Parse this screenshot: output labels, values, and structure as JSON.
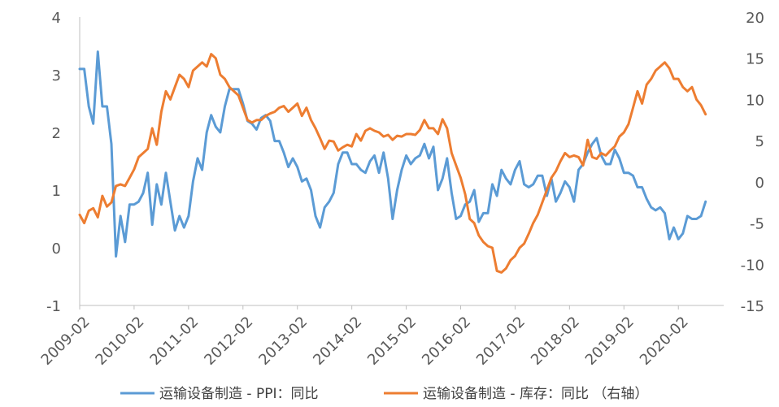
{
  "chart_data": {
    "type": "line",
    "title": "",
    "xlabel": "",
    "ylabel": "",
    "x_start": "2009-02",
    "x_end": "2020-12",
    "x_tick_labels": [
      "2009-02",
      "2010-02",
      "2011-02",
      "2012-02",
      "2013-02",
      "2014-02",
      "2015-02",
      "2016-02",
      "2017-02",
      "2018-02",
      "2019-02",
      "2020-02"
    ],
    "ylim_left": [
      -1,
      4
    ],
    "ylim_right": [
      -15,
      20
    ],
    "left_tick_labels": [
      "4",
      "3",
      "2",
      "1",
      "0",
      "-1"
    ],
    "right_tick_labels": [
      "20",
      "15",
      "10",
      "5",
      "0",
      "-5",
      "-10",
      "-15"
    ],
    "grid": false,
    "legend_position": "bottom",
    "series": [
      {
        "name": "运输设备制造 - PPI：同比",
        "axis": "left",
        "color": "#5B9BD5",
        "points": [
          [
            "2009-02",
            3.1
          ],
          [
            "2009-03",
            3.1
          ],
          [
            "2009-04",
            2.45
          ],
          [
            "2009-05",
            2.15
          ],
          [
            "2009-06",
            3.4
          ],
          [
            "2009-07",
            2.45
          ],
          [
            "2009-08",
            2.45
          ],
          [
            "2009-09",
            1.8
          ],
          [
            "2009-10",
            -0.15
          ],
          [
            "2009-11",
            0.55
          ],
          [
            "2009-12",
            0.1
          ],
          [
            "2010-01",
            0.75
          ],
          [
            "2010-02",
            0.75
          ],
          [
            "2010-03",
            0.8
          ],
          [
            "2010-04",
            0.95
          ],
          [
            "2010-05",
            1.3
          ],
          [
            "2010-06",
            0.4
          ],
          [
            "2010-07",
            1.1
          ],
          [
            "2010-08",
            0.75
          ],
          [
            "2010-09",
            1.3
          ],
          [
            "2010-10",
            0.8
          ],
          [
            "2010-11",
            0.3
          ],
          [
            "2010-12",
            0.55
          ],
          [
            "2011-01",
            0.35
          ],
          [
            "2011-02",
            0.55
          ],
          [
            "2011-03",
            1.15
          ],
          [
            "2011-04",
            1.55
          ],
          [
            "2011-05",
            1.35
          ],
          [
            "2011-06",
            2.0
          ],
          [
            "2011-07",
            2.3
          ],
          [
            "2011-08",
            2.1
          ],
          [
            "2011-09",
            2.0
          ],
          [
            "2011-10",
            2.45
          ],
          [
            "2011-11",
            2.75
          ],
          [
            "2011-12",
            2.75
          ],
          [
            "2012-01",
            2.75
          ],
          [
            "2012-02",
            2.5
          ],
          [
            "2012-03",
            2.2
          ],
          [
            "2012-04",
            2.15
          ],
          [
            "2012-05",
            2.05
          ],
          [
            "2012-06",
            2.25
          ],
          [
            "2012-07",
            2.3
          ],
          [
            "2012-08",
            2.2
          ],
          [
            "2012-09",
            1.85
          ],
          [
            "2012-10",
            1.85
          ],
          [
            "2012-11",
            1.65
          ],
          [
            "2012-12",
            1.4
          ],
          [
            "2013-01",
            1.55
          ],
          [
            "2013-02",
            1.4
          ],
          [
            "2013-03",
            1.15
          ],
          [
            "2013-04",
            1.2
          ],
          [
            "2013-05",
            1.0
          ],
          [
            "2013-06",
            0.55
          ],
          [
            "2013-07",
            0.35
          ],
          [
            "2013-08",
            0.7
          ],
          [
            "2013-09",
            0.8
          ],
          [
            "2013-10",
            0.95
          ],
          [
            "2013-11",
            1.45
          ],
          [
            "2013-12",
            1.65
          ],
          [
            "2014-01",
            1.65
          ],
          [
            "2014-02",
            1.45
          ],
          [
            "2014-03",
            1.45
          ],
          [
            "2014-04",
            1.35
          ],
          [
            "2014-05",
            1.3
          ],
          [
            "2014-06",
            1.5
          ],
          [
            "2014-07",
            1.6
          ],
          [
            "2014-08",
            1.3
          ],
          [
            "2014-09",
            1.65
          ],
          [
            "2014-10",
            1.2
          ],
          [
            "2014-11",
            0.5
          ],
          [
            "2014-12",
            1.0
          ],
          [
            "2015-01",
            1.35
          ],
          [
            "2015-02",
            1.6
          ],
          [
            "2015-03",
            1.45
          ],
          [
            "2015-04",
            1.55
          ],
          [
            "2015-05",
            1.6
          ],
          [
            "2015-06",
            1.8
          ],
          [
            "2015-07",
            1.55
          ],
          [
            "2015-08",
            1.75
          ],
          [
            "2015-09",
            1.0
          ],
          [
            "2015-10",
            1.2
          ],
          [
            "2015-11",
            1.55
          ],
          [
            "2015-12",
            0.95
          ],
          [
            "2016-01",
            0.5
          ],
          [
            "2016-02",
            0.55
          ],
          [
            "2016-03",
            0.75
          ],
          [
            "2016-04",
            0.8
          ],
          [
            "2016-05",
            1.0
          ],
          [
            "2016-06",
            0.45
          ],
          [
            "2016-07",
            0.6
          ],
          [
            "2016-08",
            0.6
          ],
          [
            "2016-09",
            1.1
          ],
          [
            "2016-10",
            0.9
          ],
          [
            "2016-11",
            1.35
          ],
          [
            "2016-12",
            1.2
          ],
          [
            "2017-01",
            1.1
          ],
          [
            "2017-02",
            1.35
          ],
          [
            "2017-03",
            1.5
          ],
          [
            "2017-04",
            1.1
          ],
          [
            "2017-05",
            1.05
          ],
          [
            "2017-06",
            1.1
          ],
          [
            "2017-07",
            1.25
          ],
          [
            "2017-08",
            1.25
          ],
          [
            "2017-09",
            0.9
          ],
          [
            "2017-10",
            1.2
          ],
          [
            "2017-11",
            0.8
          ],
          [
            "2017-12",
            0.95
          ],
          [
            "2018-01",
            1.15
          ],
          [
            "2018-02",
            1.05
          ],
          [
            "2018-03",
            0.8
          ],
          [
            "2018-04",
            1.35
          ],
          [
            "2018-05",
            1.45
          ],
          [
            "2018-06",
            1.65
          ],
          [
            "2018-07",
            1.8
          ],
          [
            "2018-08",
            1.9
          ],
          [
            "2018-09",
            1.6
          ],
          [
            "2018-10",
            1.45
          ],
          [
            "2018-11",
            1.45
          ],
          [
            "2018-12",
            1.7
          ],
          [
            "2019-01",
            1.55
          ],
          [
            "2019-02",
            1.3
          ],
          [
            "2019-03",
            1.3
          ],
          [
            "2019-04",
            1.25
          ],
          [
            "2019-05",
            1.05
          ],
          [
            "2019-06",
            1.05
          ],
          [
            "2019-07",
            0.85
          ],
          [
            "2019-08",
            0.7
          ],
          [
            "2019-09",
            0.65
          ],
          [
            "2019-10",
            0.7
          ],
          [
            "2019-11",
            0.6
          ],
          [
            "2019-12",
            0.15
          ],
          [
            "2020-01",
            0.35
          ],
          [
            "2020-02",
            0.15
          ],
          [
            "2020-03",
            0.25
          ],
          [
            "2020-04",
            0.55
          ],
          [
            "2020-05",
            0.5
          ],
          [
            "2020-06",
            0.5
          ],
          [
            "2020-07",
            0.55
          ],
          [
            "2020-08",
            0.8
          ]
        ]
      },
      {
        "name": "运输设备制造 - 库存：同比 （右轴）",
        "axis": "right",
        "color": "#ED7D31",
        "points": [
          [
            "2009-02",
            -4
          ],
          [
            "2009-03",
            -5
          ],
          [
            "2009-04",
            -3.5
          ],
          [
            "2009-05",
            -3.2
          ],
          [
            "2009-06",
            -4.3
          ],
          [
            "2009-07",
            -1.7
          ],
          [
            "2009-08",
            -3.0
          ],
          [
            "2009-09",
            -2.5
          ],
          [
            "2009-10",
            -0.5
          ],
          [
            "2009-11",
            -0.3
          ],
          [
            "2009-12",
            -0.5
          ],
          [
            "2010-01",
            0.5
          ],
          [
            "2010-02",
            1.5
          ],
          [
            "2010-03",
            3.0
          ],
          [
            "2010-04",
            3.5
          ],
          [
            "2010-05",
            4.0
          ],
          [
            "2010-06",
            6.5
          ],
          [
            "2010-07",
            4.5
          ],
          [
            "2010-08",
            8.5
          ],
          [
            "2010-09",
            11
          ],
          [
            "2010-10",
            10
          ],
          [
            "2010-11",
            11.5
          ],
          [
            "2010-12",
            13
          ],
          [
            "2011-01",
            12.5
          ],
          [
            "2011-02",
            11.5
          ],
          [
            "2011-03",
            13.5
          ],
          [
            "2011-04",
            14
          ],
          [
            "2011-05",
            14.5
          ],
          [
            "2011-06",
            14
          ],
          [
            "2011-07",
            15.5
          ],
          [
            "2011-08",
            15
          ],
          [
            "2011-09",
            13
          ],
          [
            "2011-10",
            12.5
          ],
          [
            "2011-11",
            11.5
          ],
          [
            "2011-12",
            11
          ],
          [
            "2012-01",
            10.5
          ],
          [
            "2012-02",
            9
          ],
          [
            "2012-03",
            7.5
          ],
          [
            "2012-04",
            7.2
          ],
          [
            "2012-05",
            7.5
          ],
          [
            "2012-06",
            7.5
          ],
          [
            "2012-07",
            8
          ],
          [
            "2012-08",
            8.3
          ],
          [
            "2012-09",
            8.5
          ],
          [
            "2012-10",
            9
          ],
          [
            "2012-11",
            9.2
          ],
          [
            "2012-12",
            8.5
          ],
          [
            "2013-01",
            9
          ],
          [
            "2013-02",
            9.5
          ],
          [
            "2013-03",
            8.0
          ],
          [
            "2013-04",
            9.0
          ],
          [
            "2013-05",
            7.5
          ],
          [
            "2013-06",
            6.5
          ],
          [
            "2013-07",
            5.3
          ],
          [
            "2013-08",
            4.0
          ],
          [
            "2013-09",
            5
          ],
          [
            "2013-10",
            4.9
          ],
          [
            "2013-11",
            3.8
          ],
          [
            "2013-12",
            4.2
          ],
          [
            "2014-01",
            4.5
          ],
          [
            "2014-02",
            4.3
          ],
          [
            "2014-03",
            5.8
          ],
          [
            "2014-04",
            5.0
          ],
          [
            "2014-05",
            6.2
          ],
          [
            "2014-06",
            6.5
          ],
          [
            "2014-07",
            6.2
          ],
          [
            "2014-08",
            6
          ],
          [
            "2014-09",
            5.5
          ],
          [
            "2014-10",
            5.7
          ],
          [
            "2014-11",
            5.1
          ],
          [
            "2014-12",
            5.6
          ],
          [
            "2015-01",
            5.5
          ],
          [
            "2015-02",
            5.8
          ],
          [
            "2015-03",
            5.8
          ],
          [
            "2015-04",
            5.7
          ],
          [
            "2015-05",
            6.3
          ],
          [
            "2015-06",
            7.5
          ],
          [
            "2015-07",
            6.5
          ],
          [
            "2015-08",
            6.5
          ],
          [
            "2015-09",
            5.8
          ],
          [
            "2015-10",
            7.6
          ],
          [
            "2015-11",
            6.5
          ],
          [
            "2015-12",
            3.5
          ],
          [
            "2016-01",
            2
          ],
          [
            "2016-02",
            0.5
          ],
          [
            "2016-03",
            -1.5
          ],
          [
            "2016-04",
            -4.5
          ],
          [
            "2016-05",
            -5
          ],
          [
            "2016-06",
            -6.5
          ],
          [
            "2016-07",
            -7.3
          ],
          [
            "2016-08",
            -7.8
          ],
          [
            "2016-09",
            -8
          ],
          [
            "2016-10",
            -10.8
          ],
          [
            "2016-11",
            -11
          ],
          [
            "2016-12",
            -10.5
          ],
          [
            "2017-01",
            -9.5
          ],
          [
            "2017-02",
            -9
          ],
          [
            "2017-03",
            -8
          ],
          [
            "2017-04",
            -7.5
          ],
          [
            "2017-05",
            -6.3
          ],
          [
            "2017-06",
            -5
          ],
          [
            "2017-07",
            -4
          ],
          [
            "2017-08",
            -2.5
          ],
          [
            "2017-09",
            -1.0
          ],
          [
            "2017-10",
            0.5
          ],
          [
            "2017-11",
            1.3
          ],
          [
            "2017-12",
            2.5
          ],
          [
            "2018-01",
            3.5
          ],
          [
            "2018-02",
            3
          ],
          [
            "2018-03",
            3.2
          ],
          [
            "2018-04",
            3
          ],
          [
            "2018-05",
            2
          ],
          [
            "2018-06",
            5.1
          ],
          [
            "2018-07",
            3.0
          ],
          [
            "2018-08",
            2.8
          ],
          [
            "2018-09",
            3.5
          ],
          [
            "2018-10",
            3.2
          ],
          [
            "2018-11",
            3.8
          ],
          [
            "2018-12",
            4.3
          ],
          [
            "2019-01",
            5.5
          ],
          [
            "2019-02",
            6
          ],
          [
            "2019-03",
            7
          ],
          [
            "2019-04",
            9
          ],
          [
            "2019-05",
            11
          ],
          [
            "2019-06",
            9.5
          ],
          [
            "2019-07",
            11.8
          ],
          [
            "2019-08",
            12.5
          ],
          [
            "2019-09",
            13.5
          ],
          [
            "2019-10",
            14
          ],
          [
            "2019-11",
            14.5
          ],
          [
            "2019-12",
            13.8
          ],
          [
            "2020-01",
            12.5
          ],
          [
            "2020-02",
            12.5
          ],
          [
            "2020-03",
            11.5
          ],
          [
            "2020-04",
            11
          ],
          [
            "2020-05",
            11.5
          ],
          [
            "2020-06",
            10.0
          ],
          [
            "2020-07",
            9.3
          ],
          [
            "2020-08",
            8.2
          ]
        ]
      }
    ]
  }
}
